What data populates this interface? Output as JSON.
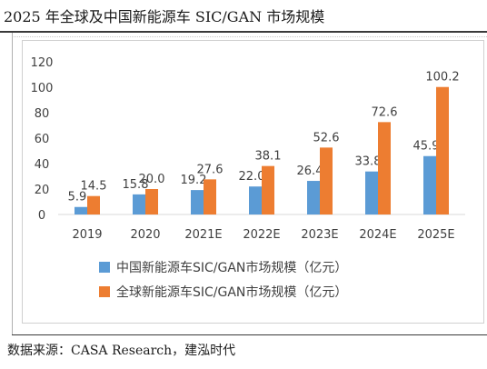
{
  "page": {
    "title": "2025 年全球及中国新能源车 SIC/GAN 市场规模",
    "source": "数据来源：CASA Research，建泓时代"
  },
  "colors": {
    "china": "#5b9bd5",
    "global": "#ed7d31"
  },
  "chart_data": {
    "type": "bar",
    "categories": [
      "2019",
      "2020",
      "2021E",
      "2022E",
      "2023E",
      "2024E",
      "2025E"
    ],
    "series": [
      {
        "name": "中国新能源车SIC/GAN市场规模（亿元）",
        "values": [
          5.9,
          15.8,
          19.2,
          22.0,
          26.4,
          33.8,
          45.9
        ]
      },
      {
        "name": "全球新能源车SIC/GAN市场规模（亿元）",
        "values": [
          14.5,
          20.0,
          27.6,
          38.1,
          52.6,
          72.6,
          100.2
        ]
      }
    ],
    "data_labels": [
      [
        "5.9",
        "15.8",
        "19.2",
        "22.0",
        "26.4",
        "33.8",
        "45.9"
      ],
      [
        "14.5",
        "20.0",
        "27.6",
        "38.1",
        "52.6",
        "72.6",
        "100.2"
      ]
    ],
    "y_ticks": [
      "0",
      "20",
      "40",
      "60",
      "80",
      "100",
      "120"
    ],
    "ylim": [
      0,
      120
    ],
    "grid": false,
    "legend_position": "bottom",
    "title": "",
    "xlabel": "",
    "ylabel": ""
  }
}
